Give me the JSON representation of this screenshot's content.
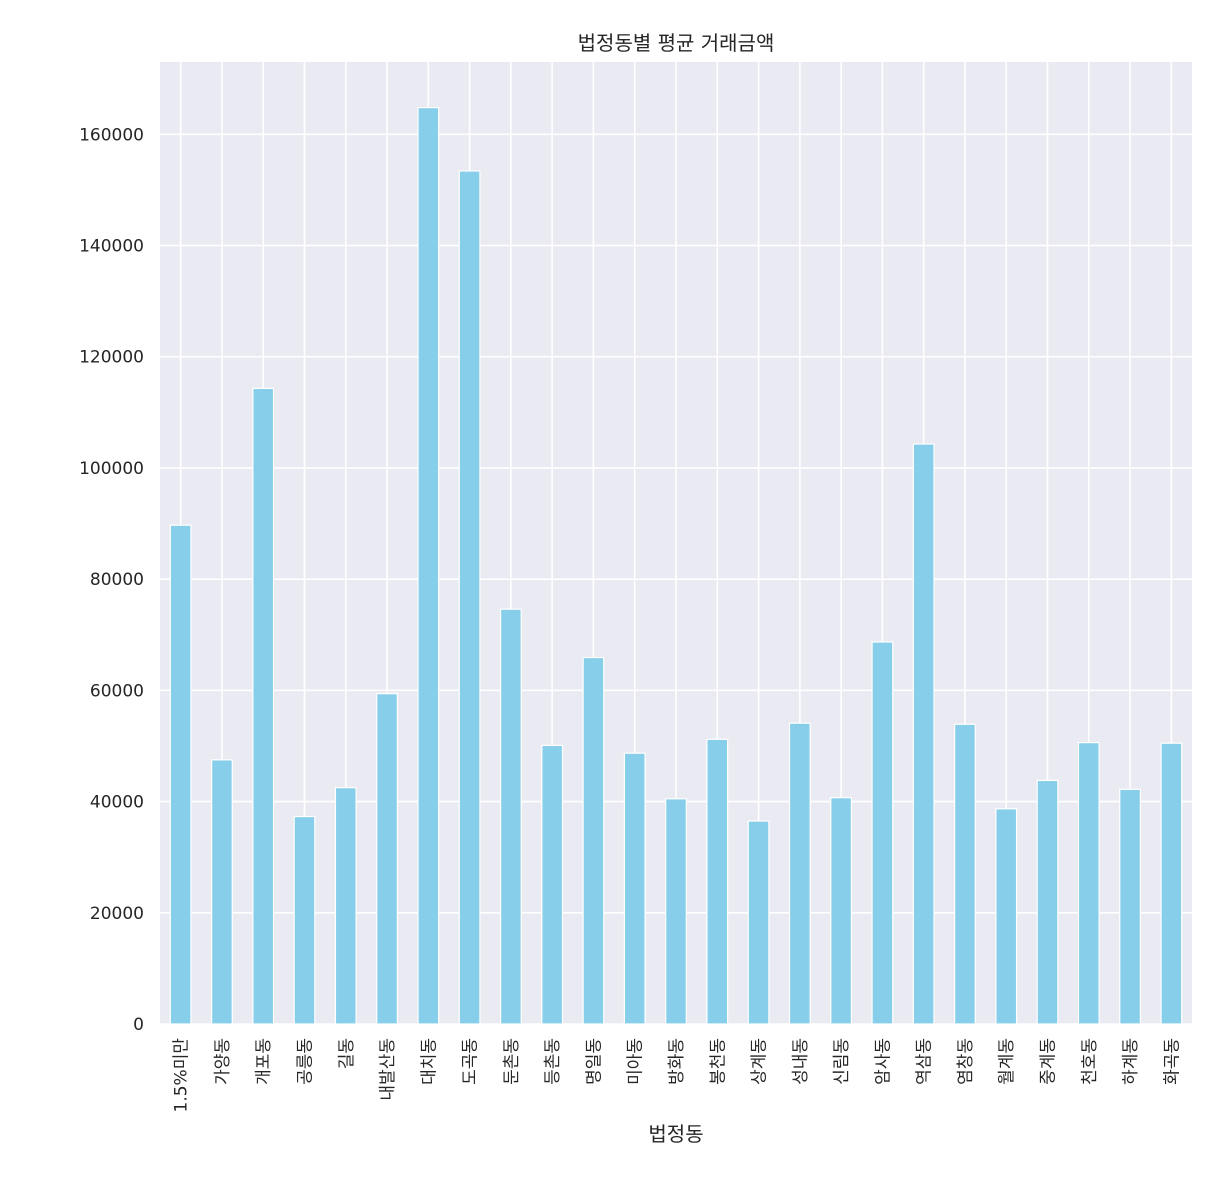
{
  "chart_data": {
    "type": "bar",
    "title": "법정동별 평균 거래금액",
    "xlabel": "법정동",
    "ylabel": "",
    "ylim": [
      0,
      173000
    ],
    "yticks": [
      0,
      20000,
      40000,
      60000,
      80000,
      100000,
      120000,
      140000,
      160000
    ],
    "grid": true,
    "legend": "none",
    "categories": [
      "1.5%미만",
      "가양동",
      "개포동",
      "공릉동",
      "길동",
      "내발산동",
      "대치동",
      "도곡동",
      "둔촌동",
      "등촌동",
      "명일동",
      "미아동",
      "방화동",
      "봉천동",
      "상계동",
      "성내동",
      "신림동",
      "암사동",
      "역삼동",
      "염창동",
      "월계동",
      "중계동",
      "천호동",
      "하계동",
      "화곡동"
    ],
    "values": [
      89700,
      47500,
      114300,
      37300,
      42500,
      59400,
      164800,
      153400,
      74600,
      50100,
      65900,
      48700,
      40500,
      51200,
      36500,
      54100,
      40700,
      68700,
      104300,
      53900,
      38700,
      43800,
      50600,
      42200,
      50500
    ]
  },
  "colors": {
    "bar": "#87ceeb",
    "plot_background": "#eaeaf2",
    "grid": "#ffffff",
    "text": "#262626"
  }
}
